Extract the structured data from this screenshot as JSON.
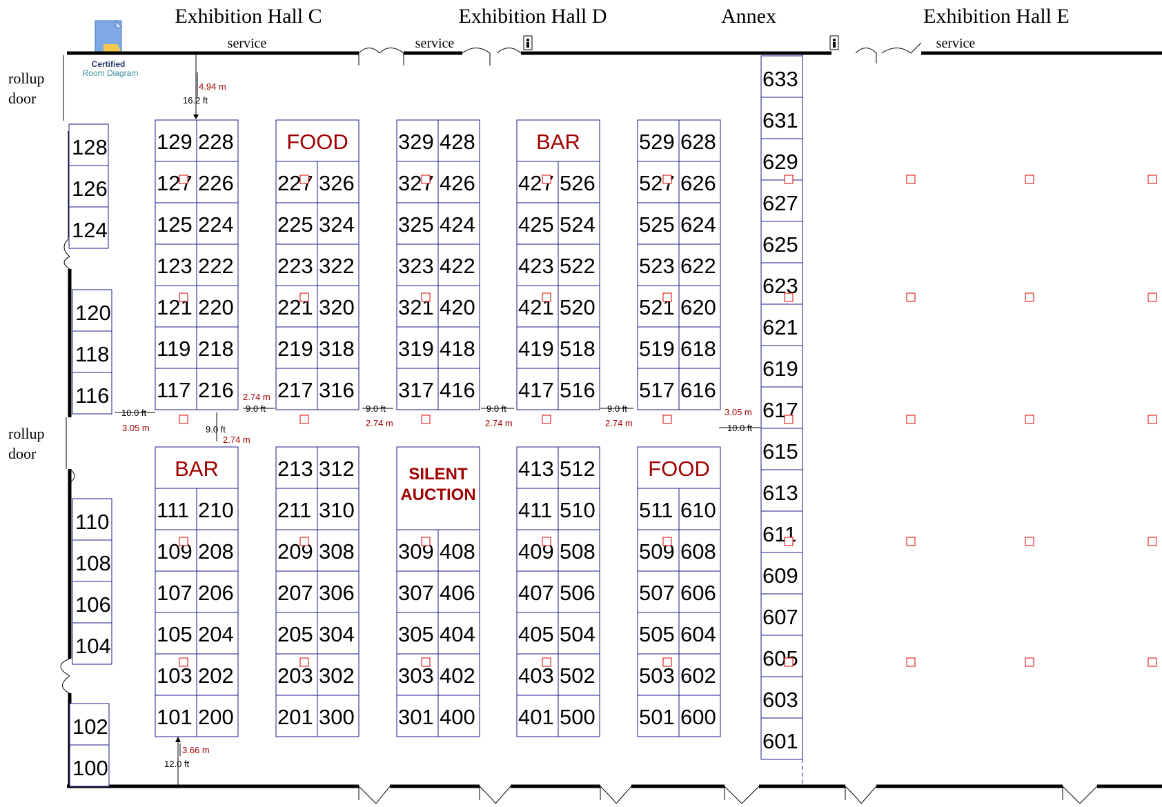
{
  "halls": {
    "hall_c": "Exhibition Hall C",
    "hall_d": "Exhibition Hall D",
    "annex": "Annex",
    "hall_e": "Exhibition Hall E"
  },
  "service_labels": [
    "service",
    "service",
    "service"
  ],
  "badge": {
    "line1": "Certified",
    "line2": "Room Diagram"
  },
  "rollup_door": {
    "line1": "rollup",
    "line2": "door"
  },
  "left_booths": [
    "128",
    "126",
    "124",
    "120",
    "118",
    "116",
    "110",
    "108",
    "106",
    "104",
    "102",
    "100"
  ],
  "aisle_booths": {
    "a1": {
      "top_rows": [
        [
          "129",
          "228"
        ],
        [
          "127",
          "226"
        ],
        [
          "125",
          "224"
        ],
        [
          "123",
          "222"
        ],
        [
          "121",
          "220"
        ],
        [
          "119",
          "218"
        ],
        [
          "117",
          "216"
        ]
      ],
      "bottom_header": "BAR",
      "bottom_rows": [
        [
          "111",
          "210"
        ],
        [
          "109",
          "208"
        ],
        [
          "107",
          "206"
        ],
        [
          "105",
          "204"
        ],
        [
          "103",
          "202"
        ],
        [
          "101",
          "200"
        ]
      ]
    },
    "a2": {
      "top_header": "FOOD",
      "top_rows": [
        [
          "227",
          "326"
        ],
        [
          "225",
          "324"
        ],
        [
          "223",
          "322"
        ],
        [
          "221",
          "320"
        ],
        [
          "219",
          "318"
        ],
        [
          "217",
          "316"
        ]
      ],
      "bottom_rows": [
        [
          "213",
          "312"
        ],
        [
          "211",
          "310"
        ],
        [
          "209",
          "308"
        ],
        [
          "207",
          "306"
        ],
        [
          "205",
          "304"
        ],
        [
          "203",
          "302"
        ],
        [
          "201",
          "300"
        ]
      ]
    },
    "a3": {
      "top_rows": [
        [
          "329",
          "428"
        ],
        [
          "327",
          "426"
        ],
        [
          "325",
          "424"
        ],
        [
          "323",
          "422"
        ],
        [
          "321",
          "420"
        ],
        [
          "319",
          "418"
        ],
        [
          "317",
          "416"
        ]
      ],
      "bottom_header_line1": "SILENT",
      "bottom_header_line2": "AUCTION",
      "bottom_rows": [
        [
          "309",
          "408"
        ],
        [
          "307",
          "406"
        ],
        [
          "305",
          "404"
        ],
        [
          "303",
          "402"
        ],
        [
          "301",
          "400"
        ]
      ]
    },
    "a4": {
      "top_header": "BAR",
      "top_rows": [
        [
          "427",
          "526"
        ],
        [
          "425",
          "524"
        ],
        [
          "423",
          "522"
        ],
        [
          "421",
          "520"
        ],
        [
          "419",
          "518"
        ],
        [
          "417",
          "516"
        ]
      ],
      "bottom_rows": [
        [
          "413",
          "512"
        ],
        [
          "411",
          "510"
        ],
        [
          "409",
          "508"
        ],
        [
          "407",
          "506"
        ],
        [
          "405",
          "504"
        ],
        [
          "403",
          "502"
        ],
        [
          "401",
          "500"
        ]
      ]
    },
    "a5": {
      "top_rows": [
        [
          "529",
          "628"
        ],
        [
          "527",
          "626"
        ],
        [
          "525",
          "624"
        ],
        [
          "523",
          "622"
        ],
        [
          "521",
          "620"
        ],
        [
          "519",
          "618"
        ],
        [
          "517",
          "616"
        ]
      ],
      "bottom_header": "FOOD",
      "bottom_rows": [
        [
          "511",
          "610"
        ],
        [
          "509",
          "608"
        ],
        [
          "507",
          "606"
        ],
        [
          "505",
          "604"
        ],
        [
          "503",
          "602"
        ],
        [
          "501",
          "600"
        ]
      ]
    }
  },
  "annex_booths": [
    "633",
    "631",
    "629",
    "627",
    "625",
    "623",
    "621",
    "619",
    "617",
    "615",
    "613",
    "611",
    "609",
    "607",
    "605",
    "603",
    "601"
  ],
  "measurements": {
    "top_m": "4.94 m",
    "top_ft": "16.2 ft",
    "left_ft": "10.0 ft",
    "left_m": "3.05 m",
    "cross_ft": "9.0 ft",
    "cross_m": "2.74 m",
    "a12_ft": "9.0 ft",
    "a12_m": "2.74 m",
    "a23_ft": "9.0 ft",
    "a23_m": "2.74 m",
    "a34_ft": "9.0 ft",
    "a34_m": "2.74 m",
    "a45_ft": "9.0 ft",
    "a45_m": "2.74 m",
    "right_m": "3.05 m",
    "right_ft": "10.0 ft",
    "bottom_m": "3.66 m",
    "bottom_ft": "12.0 ft"
  },
  "colors": {
    "booth_border": "#1a1a8c",
    "label_red": "#a00000",
    "column_marker": "#e00000"
  }
}
